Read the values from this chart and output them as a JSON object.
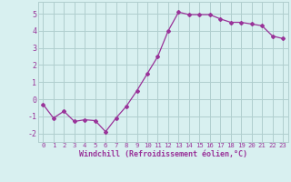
{
  "x": [
    0,
    1,
    2,
    3,
    4,
    5,
    6,
    7,
    8,
    9,
    10,
    11,
    12,
    13,
    14,
    15,
    16,
    17,
    18,
    19,
    20,
    21,
    22,
    23
  ],
  "y": [
    -0.3,
    -1.1,
    -0.7,
    -1.3,
    -1.2,
    -1.25,
    -1.9,
    -1.1,
    -0.4,
    0.5,
    1.5,
    2.5,
    4.0,
    5.1,
    4.95,
    4.95,
    4.95,
    4.7,
    4.5,
    4.5,
    4.4,
    4.3,
    3.7,
    3.55
  ],
  "line_color": "#993399",
  "marker": "D",
  "marker_size": 2,
  "bg_color": "#d8f0f0",
  "grid_color": "#b0cece",
  "xlabel": "Windchill (Refroidissement éolien,°C)",
  "xlabel_color": "#993399",
  "tick_color": "#993399",
  "ylim": [
    -2.5,
    5.7
  ],
  "xlim": [
    -0.5,
    23.5
  ],
  "yticks": [
    -2,
    -1,
    0,
    1,
    2,
    3,
    4,
    5
  ],
  "xticks": [
    0,
    1,
    2,
    3,
    4,
    5,
    6,
    7,
    8,
    9,
    10,
    11,
    12,
    13,
    14,
    15,
    16,
    17,
    18,
    19,
    20,
    21,
    22,
    23
  ],
  "xtick_labels": [
    "0",
    "1",
    "2",
    "3",
    "4",
    "5",
    "6",
    "7",
    "8",
    "9",
    "10",
    "11",
    "12",
    "13",
    "14",
    "15",
    "16",
    "17",
    "18",
    "19",
    "20",
    "21",
    "22",
    "23"
  ],
  "xlabel_fontsize": 6.0,
  "xtick_fontsize": 5.2,
  "ytick_fontsize": 6.0
}
